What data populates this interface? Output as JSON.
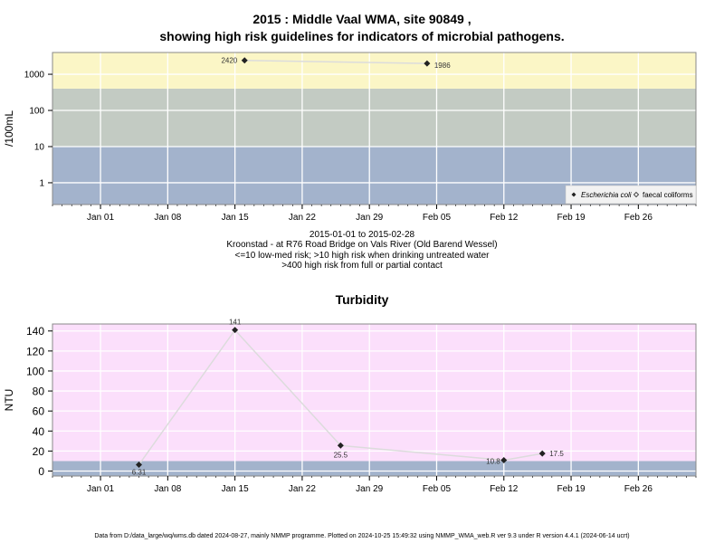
{
  "chart_data": [
    {
      "type": "line",
      "title": "2015 : Middle Vaal WMA, site 90849 ,",
      "subtitle": "showing high risk guidelines for indicators of microbial pathogens.",
      "ylabel": "/100mL",
      "yscale": "log",
      "ylim": [
        0.25,
        4000
      ],
      "yticks": [
        1,
        10,
        100,
        1000
      ],
      "ytick_labels": [
        "1",
        "10",
        "100",
        "1000"
      ],
      "xlim": [
        "2014-12-27",
        "2015-03-04"
      ],
      "xticks": [
        "2015-01-01",
        "2015-01-08",
        "2015-01-15",
        "2015-01-22",
        "2015-01-29",
        "2015-02-05",
        "2015-02-12",
        "2015-02-19",
        "2015-02-26"
      ],
      "xtick_labels": [
        "Jan 01",
        "Jan 08",
        "Jan 15",
        "Jan 22",
        "Jan 29",
        "Feb 05",
        "Feb 12",
        "Feb 19",
        "Feb 26"
      ],
      "bands": [
        {
          "from": 0.25,
          "to": 10,
          "color": "#a3b3cc"
        },
        {
          "from": 10,
          "to": 400,
          "color": "#c3cbc3"
        },
        {
          "from": 400,
          "to": 4000,
          "color": "#fbf6c6"
        }
      ],
      "series": [
        {
          "name": "Escherichia coli",
          "color": "#222222",
          "line_color": "#dcdcdc",
          "x": [
            "2015-01-16",
            "2015-02-04"
          ],
          "y": [
            2420,
            1986
          ],
          "labels": [
            "2420",
            "1986"
          ]
        }
      ],
      "legend": {
        "position": "bottom-right",
        "entries": [
          {
            "label": "Escherichia coli",
            "marker": "filled-diamond"
          },
          {
            "label": "faecal coliforms",
            "marker": "open-diamond"
          }
        ]
      },
      "grid": true
    },
    {
      "type": "line",
      "title": "Turbidity",
      "ylabel": "NTU",
      "ylim": [
        -5,
        147
      ],
      "yticks": [
        0,
        20,
        40,
        60,
        80,
        100,
        120,
        140
      ],
      "ytick_labels": [
        "0",
        "20",
        "40",
        "60",
        "80",
        "100",
        "120",
        "140"
      ],
      "xlim": [
        "2014-12-27",
        "2015-03-04"
      ],
      "xticks": [
        "2015-01-01",
        "2015-01-08",
        "2015-01-15",
        "2015-01-22",
        "2015-01-29",
        "2015-02-05",
        "2015-02-12",
        "2015-02-19",
        "2015-02-26"
      ],
      "xtick_labels": [
        "Jan 01",
        "Jan 08",
        "Jan 15",
        "Jan 22",
        "Jan 29",
        "Feb 05",
        "Feb 12",
        "Feb 19",
        "Feb 26"
      ],
      "bands": [
        {
          "from": -5,
          "to": 10,
          "color": "#a3b3cc"
        },
        {
          "from": 10,
          "to": 147,
          "color": "#fbdffb"
        }
      ],
      "series": [
        {
          "color": "#222222",
          "line_color": "#dcdcdc",
          "x": [
            "2015-01-05",
            "2015-01-15",
            "2015-01-26",
            "2015-02-12",
            "2015-02-16"
          ],
          "y": [
            6.31,
            141,
            25.5,
            10.8,
            17.5
          ],
          "labels": [
            "6.31",
            "141",
            "25.5",
            "10.8",
            "17.5"
          ]
        }
      ],
      "grid": true
    }
  ],
  "info": {
    "line1": "2015-01-01 to 2015-02-28",
    "line2": "Kroonstad - at R76 Road Bridge on Vals River (Old Barend Wessel)",
    "line3": "<=10 low-med risk; >10 high risk when drinking untreated water",
    "line4": ">400 high risk from full or partial contact"
  },
  "footer": "Data from D:/data_large/wq/wms.db dated 2024-08-27, mainly NMMP programme. Plotted on 2024-10-25 15:49:32 using NMMP_WMA_web.R ver 9.3 under R version 4.4.1 (2024-06-14 ucrt)"
}
